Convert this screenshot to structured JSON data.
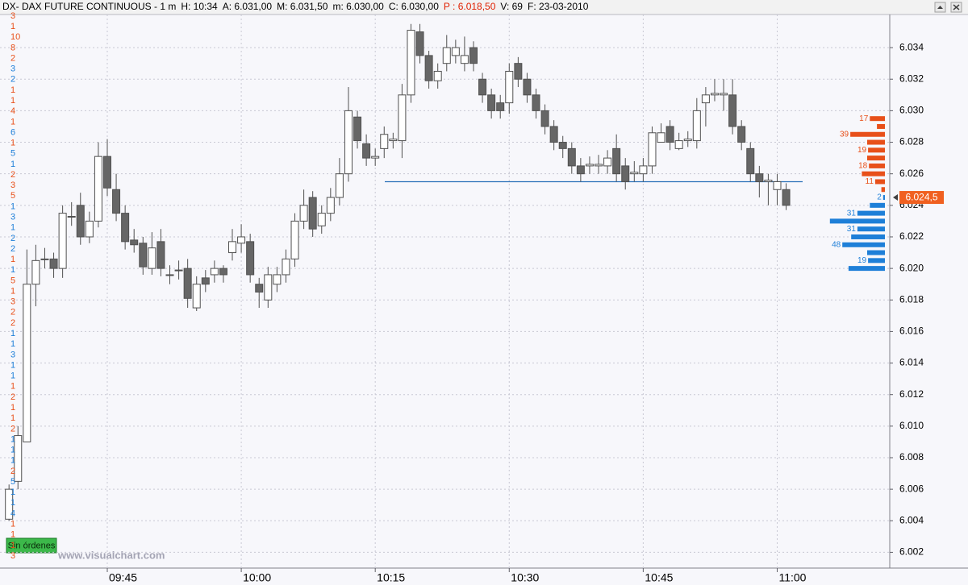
{
  "header": {
    "parts": [
      {
        "text": "DX- DAX FUTURE CONTINUOUS - 1 m",
        "color": "#000000"
      },
      {
        "text": "H: 10:34",
        "color": "#000000"
      },
      {
        "text": "A: 6.031,00",
        "color": "#000000"
      },
      {
        "text": "M: 6.031,50",
        "color": "#000000"
      },
      {
        "text": "m: 6.030,00",
        "color": "#000000"
      },
      {
        "text": "C: 6.030,00",
        "color": "#000000"
      },
      {
        "text": "P : 6.018,50",
        "color": "#e02000"
      },
      {
        "text": "V: 69",
        "color": "#000000"
      },
      {
        "text": "F: 23-03-2010",
        "color": "#000000"
      }
    ]
  },
  "footer": {
    "button": "Sin órdenes",
    "watermark": "www.visualchart.com"
  },
  "chart_data": {
    "type": "candlestick",
    "open": [
      6004.1,
      6006.5,
      6009,
      6019,
      6020.6,
      6020.6,
      6020,
      6023.3,
      6024,
      6022,
      6023,
      6027.1,
      6025,
      6023.5,
      6021.8,
      6021.6,
      6020,
      6021.7,
      6019.6,
      6019.9,
      6020,
      6017.5,
      6019.4,
      6019.6,
      6020,
      6021,
      6021.6,
      6021.7,
      6019,
      6018,
      6019,
      6019.6,
      6020.6,
      6023,
      6024.5,
      6022.7,
      6023.5,
      6024.5,
      6026,
      6029.6,
      6027.9,
      6027,
      6027.6,
      6028.1,
      6028.1,
      6031,
      6035,
      6033.5,
      6031.9,
      6033,
      6033.5,
      6033,
      6034,
      6032,
      6031,
      6030.5,
      6030.5,
      6033,
      6032,
      6031,
      6030,
      6029,
      6028,
      6027.6,
      6026.5,
      6026.5,
      6026.5,
      6026.5,
      6027.6,
      6026.5,
      6026,
      6026,
      6026.5,
      6028,
      6029,
      6027.6,
      6028.1,
      6028.1,
      6030.5,
      6031,
      6031,
      6031,
      6029,
      6027.6,
      6026,
      6025.5,
      6025,
      6025
    ],
    "high": [
      6006.3,
      6010,
      6021.2,
      6021.5,
      6021.3,
      6021,
      6024,
      6024.2,
      6024.8,
      6023.6,
      6028,
      6028.2,
      6026,
      6024,
      6022.5,
      6022,
      6022.3,
      6022.5,
      6020.2,
      6020.5,
      6020.6,
      6019.5,
      6019.9,
      6020.5,
      6020.2,
      6022.5,
      6022.8,
      6022.2,
      6019.4,
      6020.1,
      6020.1,
      6021.2,
      6023.5,
      6025,
      6024.9,
      6024,
      6025.1,
      6027,
      6031.5,
      6030,
      6028.5,
      6027.6,
      6029,
      6028.6,
      6031.7,
      6035.5,
      6035.5,
      6033.8,
      6033,
      6034.8,
      6034.5,
      6034.7,
      6034.4,
      6032.4,
      6031.4,
      6031,
      6033,
      6033.4,
      6032.4,
      6031.4,
      6030.4,
      6029.4,
      6028.4,
      6028,
      6027,
      6027.1,
      6027.2,
      6027.5,
      6028.5,
      6027,
      6026.8,
      6027,
      6029,
      6029.2,
      6029.4,
      6028.6,
      6028.7,
      6030.8,
      6031.5,
      6032,
      6032,
      6032,
      6029.4,
      6028,
      6026.5,
      6026,
      6026,
      6025.4
    ],
    "low": [
      6004,
      6006,
      6009,
      6017.6,
      6020,
      6019.4,
      6019.4,
      6022.7,
      6021.5,
      6021.6,
      6022.6,
      6024.6,
      6023,
      6021.2,
      6021,
      6019.6,
      6019.6,
      6019.5,
      6019,
      6019.3,
      6017.5,
      6017.3,
      6018.5,
      6019.1,
      6019.1,
      6020.5,
      6021,
      6019.1,
      6017.5,
      6017.5,
      6018.5,
      6019.1,
      6020.1,
      6022.5,
      6022,
      6022.2,
      6023,
      6024,
      6025.5,
      6027.6,
      6026.5,
      6026.5,
      6027,
      6027.6,
      6027,
      6030.5,
      6033,
      6031.4,
      6031.4,
      6032.5,
      6033,
      6032.5,
      6032.5,
      6030.5,
      6029.5,
      6029.5,
      6029.8,
      6031.5,
      6030.5,
      6029.5,
      6028.5,
      6027.5,
      6027,
      6026,
      6025.5,
      6026,
      6026,
      6026,
      6025.5,
      6025,
      6025.5,
      6025.5,
      6026,
      6028,
      6027.5,
      6027.5,
      6027.7,
      6027.6,
      6029,
      6030.6,
      6030,
      6028.5,
      6027.5,
      6025.5,
      6024.5,
      6024,
      6024,
      6023.7
    ],
    "close": [
      6006,
      6009.4,
      6019,
      6020.5,
      6020.6,
      6020,
      6023.5,
      6023.3,
      6022,
      6023,
      6027.1,
      6025.1,
      6023.5,
      6021.7,
      6021.5,
      6020.1,
      6021.3,
      6020,
      6019.6,
      6019.9,
      6018.1,
      6019,
      6019,
      6020,
      6019.6,
      6021.7,
      6022,
      6019.6,
      6018.5,
      6019.6,
      6019.6,
      6020.6,
      6023,
      6024,
      6022.5,
      6023.5,
      6024.5,
      6026,
      6030,
      6028.1,
      6027,
      6027.1,
      6028.5,
      6028.2,
      6031,
      6035.1,
      6033.5,
      6031.9,
      6032.5,
      6034,
      6034,
      6033.5,
      6033,
      6031,
      6030,
      6030,
      6032.5,
      6032,
      6031,
      6030,
      6029,
      6028,
      6027.6,
      6026.5,
      6026,
      6026.6,
      6026.6,
      6027,
      6026,
      6025.5,
      6026.1,
      6026.5,
      6028.6,
      6028.6,
      6028,
      6028.1,
      6028.2,
      6030,
      6031,
      6031.1,
      6031.1,
      6029,
      6028,
      6026,
      6025.5,
      6025.6,
      6025.5,
      6024
    ],
    "up_color": "#ffffff",
    "down_color": "#666666",
    "outline_color": "#505050",
    "xlim": [
      -1.01,
      98.6
    ],
    "xticks": [
      {
        "value": 11,
        "label": "09:45"
      },
      {
        "value": 26,
        "label": "10:00"
      },
      {
        "value": 41,
        "label": "10:15"
      },
      {
        "value": 56,
        "label": "10:30"
      },
      {
        "value": 71,
        "label": "10:45"
      },
      {
        "value": 86,
        "label": "11:00"
      }
    ],
    "ylim": [
      6001,
      6036.1
    ],
    "yticks": [
      {
        "value": 6002,
        "label": "6.002"
      },
      {
        "value": 6004,
        "label": "6.004"
      },
      {
        "value": 6006,
        "label": "6.006"
      },
      {
        "value": 6008,
        "label": "6.008"
      },
      {
        "value": 6010,
        "label": "6.010"
      },
      {
        "value": 6012,
        "label": "6.012"
      },
      {
        "value": 6014,
        "label": "6.014"
      },
      {
        "value": 6016,
        "label": "6.016"
      },
      {
        "value": 6018,
        "label": "6.018"
      },
      {
        "value": 6020,
        "label": "6.020"
      },
      {
        "value": 6022,
        "label": "6.022"
      },
      {
        "value": 6024,
        "label": "6.024"
      },
      {
        "value": 6026,
        "label": "6.026"
      },
      {
        "value": 6028,
        "label": "6.028"
      },
      {
        "value": 6030,
        "label": "6.030"
      },
      {
        "value": 6032,
        "label": "6.032"
      },
      {
        "value": 6034,
        "label": "6.034"
      }
    ],
    "grid": true,
    "level_line": {
      "value": 6025.5,
      "color": "#2a70b8"
    },
    "last_price": {
      "value": 6024.5,
      "label": "6.024,5",
      "color": "#f06020"
    },
    "volume_ladder": {
      "values": [
        3,
        1,
        10,
        8,
        2,
        3,
        2,
        1,
        1,
        4,
        1,
        6,
        1,
        5,
        1,
        2,
        3,
        5,
        1,
        3,
        1,
        2,
        2,
        1,
        1,
        5,
        1,
        3,
        2,
        2,
        1,
        1,
        3,
        1,
        1,
        1,
        2,
        1,
        1,
        2,
        1,
        1,
        1,
        2,
        5,
        1,
        1,
        4,
        1,
        1,
        1,
        3
      ],
      "colors": [
        "#e8501a",
        "#e8501a",
        "#e8501a",
        "#e8501a",
        "#e8501a",
        "#1e7fd8",
        "#1e7fd8",
        "#e8501a",
        "#e8501a",
        "#e8501a",
        "#e8501a",
        "#1e7fd8",
        "#e8501a",
        "#1e7fd8",
        "#1e7fd8",
        "#e8501a",
        "#e8501a",
        "#e8501a",
        "#1e7fd8",
        "#1e7fd8",
        "#1e7fd8",
        "#1e7fd8",
        "#1e7fd8",
        "#e8501a",
        "#1e7fd8",
        "#e8501a",
        "#e8501a",
        "#e8501a",
        "#e8501a",
        "#e8501a",
        "#1e7fd8",
        "#1e7fd8",
        "#1e7fd8",
        "#1e7fd8",
        "#1e7fd8",
        "#e8501a",
        "#e8501a",
        "#e8501a",
        "#e8501a",
        "#e8501a",
        "#1e7fd8",
        "#1e7fd8",
        "#1e7fd8",
        "#e8501a",
        "#1e7fd8",
        "#1e7fd8",
        "#1e7fd8",
        "#1e7fd8",
        "#e8501a",
        "#e8501a",
        "#e8501a",
        "#e8501a"
      ]
    },
    "profile": [
      {
        "color": "#e8501a",
        "prices": [
          6029.5,
          6029,
          6028.5,
          6028,
          6027.5,
          6027,
          6026.5,
          6026,
          6025.5,
          6025
        ],
        "values": [
          17,
          9,
          39,
          20,
          19,
          20,
          18,
          26,
          11,
          4
        ],
        "value_labels": [
          "17",
          null,
          "39",
          null,
          "19",
          null,
          "18",
          null,
          "11",
          null
        ]
      },
      {
        "color": "#1e7fd8",
        "prices": [
          6024.5,
          6024,
          6023.5,
          6023,
          6022.5,
          6022,
          6021.5,
          6021,
          6020.5,
          6020
        ],
        "values": [
          2,
          17,
          31,
          62,
          31,
          38,
          48,
          20,
          19,
          41
        ],
        "value_labels": [
          "2",
          null,
          "31",
          null,
          "31",
          null,
          "48",
          null,
          "19",
          null
        ]
      }
    ]
  }
}
